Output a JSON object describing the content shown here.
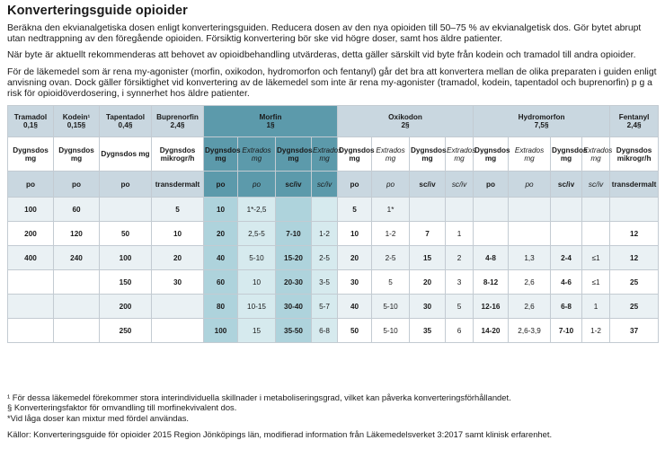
{
  "title": "Konverteringsguide opioider",
  "paragraphs": [
    "Beräkna den ekvianalgetiska dosen enligt konverteringsguiden. Reducera dosen av den nya opioiden till 50–75 % av ekvianalgetisk dos. Gör bytet abrupt utan nedtrappning av den föregående opioiden. Försiktig konvertering bör ske vid högre doser, samt hos äldre patienter.",
    "När byte är aktuellt rekommenderas att behovet av opioidbehandling utvärderas, detta gäller särskilt vid byte från kodein och tramadol till andra opioider.",
    "För de läkemedel som är rena my-agonister (morfin, oxikodon, hydromorfon och fentanyl) går det bra att konvertera mellan de olika preparaten i guiden enligt anvisning ovan. Dock gäller försiktighet vid konvertering av de läkemedel som inte är rena my-agonister (tramadol, kodein, tapentadol och buprenorfin) p g a risk för opioidöverdosering, i synnerhet hos äldre patienter."
  ],
  "table": {
    "drugs": [
      {
        "name": "Tramadol",
        "factor": "0,1§"
      },
      {
        "name": "Kodein¹",
        "factor": "0,15§"
      },
      {
        "name": "Tapentadol",
        "factor": "0,4§"
      },
      {
        "name": "Buprenorfin",
        "factor": "2,4§"
      },
      {
        "name": "Morfin",
        "factor": "1§"
      },
      {
        "name": "Oxikodon",
        "factor": "2§"
      },
      {
        "name": "Hydromorfon",
        "factor": "7,5§"
      },
      {
        "name": "Fentanyl",
        "factor": "2,4§"
      }
    ],
    "sub_headers": {
      "dygns_dos": "Dygnsdos mg",
      "extra_dos": "Extrados mg",
      "bup_dos": "Dygnsdos mikrogr/h",
      "fent_dos": "Dygnsdos mikrogr/h"
    },
    "routes": {
      "po": "po",
      "sc_iv": "sc/iv",
      "transdermalt": "transdermalt"
    },
    "rows": [
      [
        "100",
        "60",
        "",
        "5",
        "10",
        "1*-2,5",
        "",
        "",
        "5",
        "1*",
        "",
        "",
        "",
        "",
        "",
        "",
        ""
      ],
      [
        "200",
        "120",
        "50",
        "10",
        "20",
        "2,5-5",
        "7-10",
        "1-2",
        "10",
        "1-2",
        "7",
        "1",
        "",
        "",
        "",
        "",
        "12"
      ],
      [
        "400",
        "240",
        "100",
        "20",
        "40",
        "5-10",
        "15-20",
        "2-5",
        "20",
        "2-5",
        "15",
        "2",
        "4-8",
        "1,3",
        "2-4",
        "≤1",
        "12"
      ],
      [
        "",
        "",
        "150",
        "30",
        "60",
        "10",
        "20-30",
        "3-5",
        "30",
        "5",
        "20",
        "3",
        "8-12",
        "2,6",
        "4-6",
        "≤1",
        "25"
      ],
      [
        "",
        "",
        "200",
        "",
        "80",
        "10-15",
        "30-40",
        "5-7",
        "40",
        "5-10",
        "30",
        "5",
        "12-16",
        "2,6",
        "6-8",
        "1",
        "25"
      ],
      [
        "",
        "",
        "250",
        "",
        "100",
        "15",
        "35-50",
        "6-8",
        "50",
        "5-10",
        "35",
        "6",
        "14-20",
        "2,6-3,9",
        "7-10",
        "1-2",
        "37"
      ]
    ]
  },
  "footnotes": [
    "¹ För dessa läkemedel förekommer stora interindividuella skillnader i metaboliseringsgrad, vilket kan påverka konverteringsförhållandet.",
    "§ Konverteringsfaktor för omvandling till morfinekvivalent dos.",
    "*Vid låga doser kan mixtur med fördel användas."
  ],
  "source": "Källor: Konverteringsguide för opioider 2015 Region Jönköpings län, modifierad information från Läkemedelsverket 3:2017 samt klinisk erfarenhet."
}
